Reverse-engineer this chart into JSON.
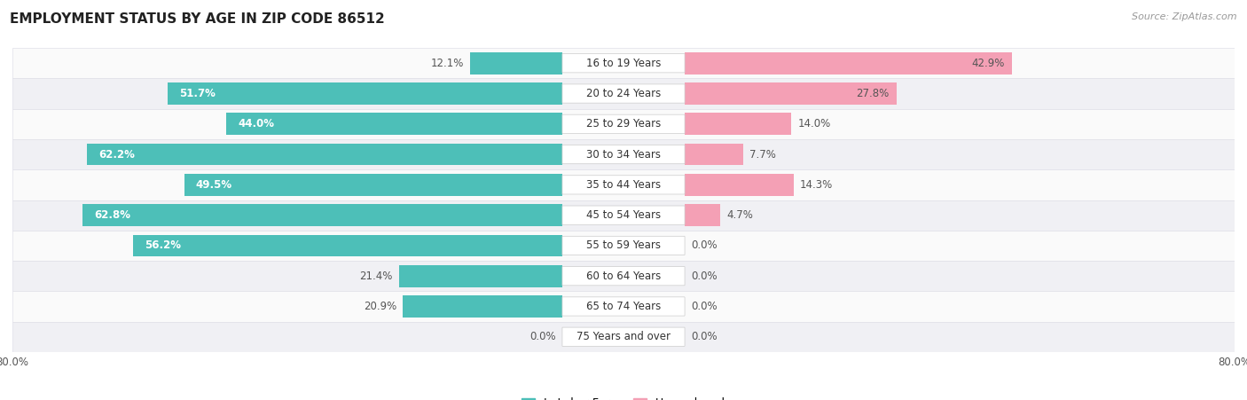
{
  "title": "EMPLOYMENT STATUS BY AGE IN ZIP CODE 86512",
  "source": "Source: ZipAtlas.com",
  "categories": [
    "16 to 19 Years",
    "20 to 24 Years",
    "25 to 29 Years",
    "30 to 34 Years",
    "35 to 44 Years",
    "45 to 54 Years",
    "55 to 59 Years",
    "60 to 64 Years",
    "65 to 74 Years",
    "75 Years and over"
  ],
  "labor_force": [
    12.1,
    51.7,
    44.0,
    62.2,
    49.5,
    62.8,
    56.2,
    21.4,
    20.9,
    0.0
  ],
  "unemployed": [
    42.9,
    27.8,
    14.0,
    7.7,
    14.3,
    4.7,
    0.0,
    0.0,
    0.0,
    0.0
  ],
  "labor_force_color": "#4DBFB8",
  "unemployed_color": "#F4A0B5",
  "row_bg_color_odd": "#FAFAFA",
  "row_bg_color_even": "#F0F0F4",
  "row_border_color": "#E0E0E8",
  "xlim": 80.0,
  "bar_height": 0.72,
  "title_fontsize": 11,
  "label_fontsize": 8.5,
  "category_fontsize": 8.5,
  "legend_fontsize": 9,
  "source_fontsize": 8,
  "inside_label_threshold": 35,
  "label_inside_color_lf": "#FFFFFF",
  "label_outside_color": "#555555",
  "label_inside_color_un": "#555555"
}
